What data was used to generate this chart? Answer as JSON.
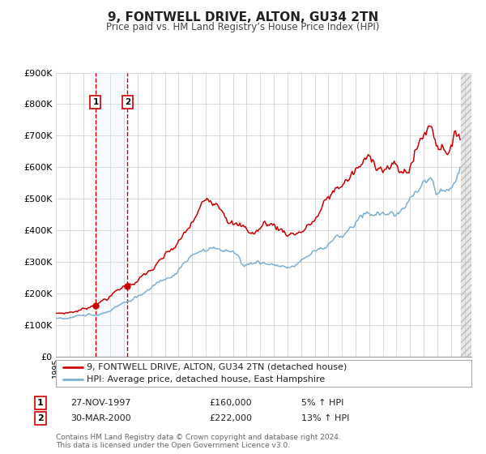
{
  "title": "9, FONTWELL DRIVE, ALTON, GU34 2TN",
  "subtitle": "Price paid vs. HM Land Registry’s House Price Index (HPI)",
  "ylim": [
    0,
    900000
  ],
  "yticks": [
    0,
    100000,
    200000,
    300000,
    400000,
    500000,
    600000,
    700000,
    800000,
    900000
  ],
  "ytick_labels": [
    "£0",
    "£100K",
    "£200K",
    "£300K",
    "£400K",
    "£500K",
    "£600K",
    "£700K",
    "£800K",
    "£900K"
  ],
  "xmin": 1995,
  "xmax": 2025.5,
  "sale1_date": 1997.91,
  "sale1_price": 160000,
  "sale1_label": "27-NOV-1997",
  "sale1_amount": "£160,000",
  "sale1_hpi": "5% ↑ HPI",
  "sale2_date": 2000.25,
  "sale2_price": 222000,
  "sale2_label": "30-MAR-2000",
  "sale2_amount": "£222,000",
  "sale2_hpi": "13% ↑ HPI",
  "legend_line1": "9, FONTWELL DRIVE, ALTON, GU34 2TN (detached house)",
  "legend_line2": "HPI: Average price, detached house, East Hampshire",
  "footer1": "Contains HM Land Registry data © Crown copyright and database right 2024.",
  "footer2": "This data is licensed under the Open Government Licence v3.0.",
  "price_color": "#cc0000",
  "hpi_color": "#7bafd4",
  "bg_color": "#ffffff",
  "grid_color": "#cccccc",
  "shade_color": "#ddeeff",
  "vline_color": "#cc0000",
  "hatch_color": "#cccccc",
  "data_end": 2024.75
}
